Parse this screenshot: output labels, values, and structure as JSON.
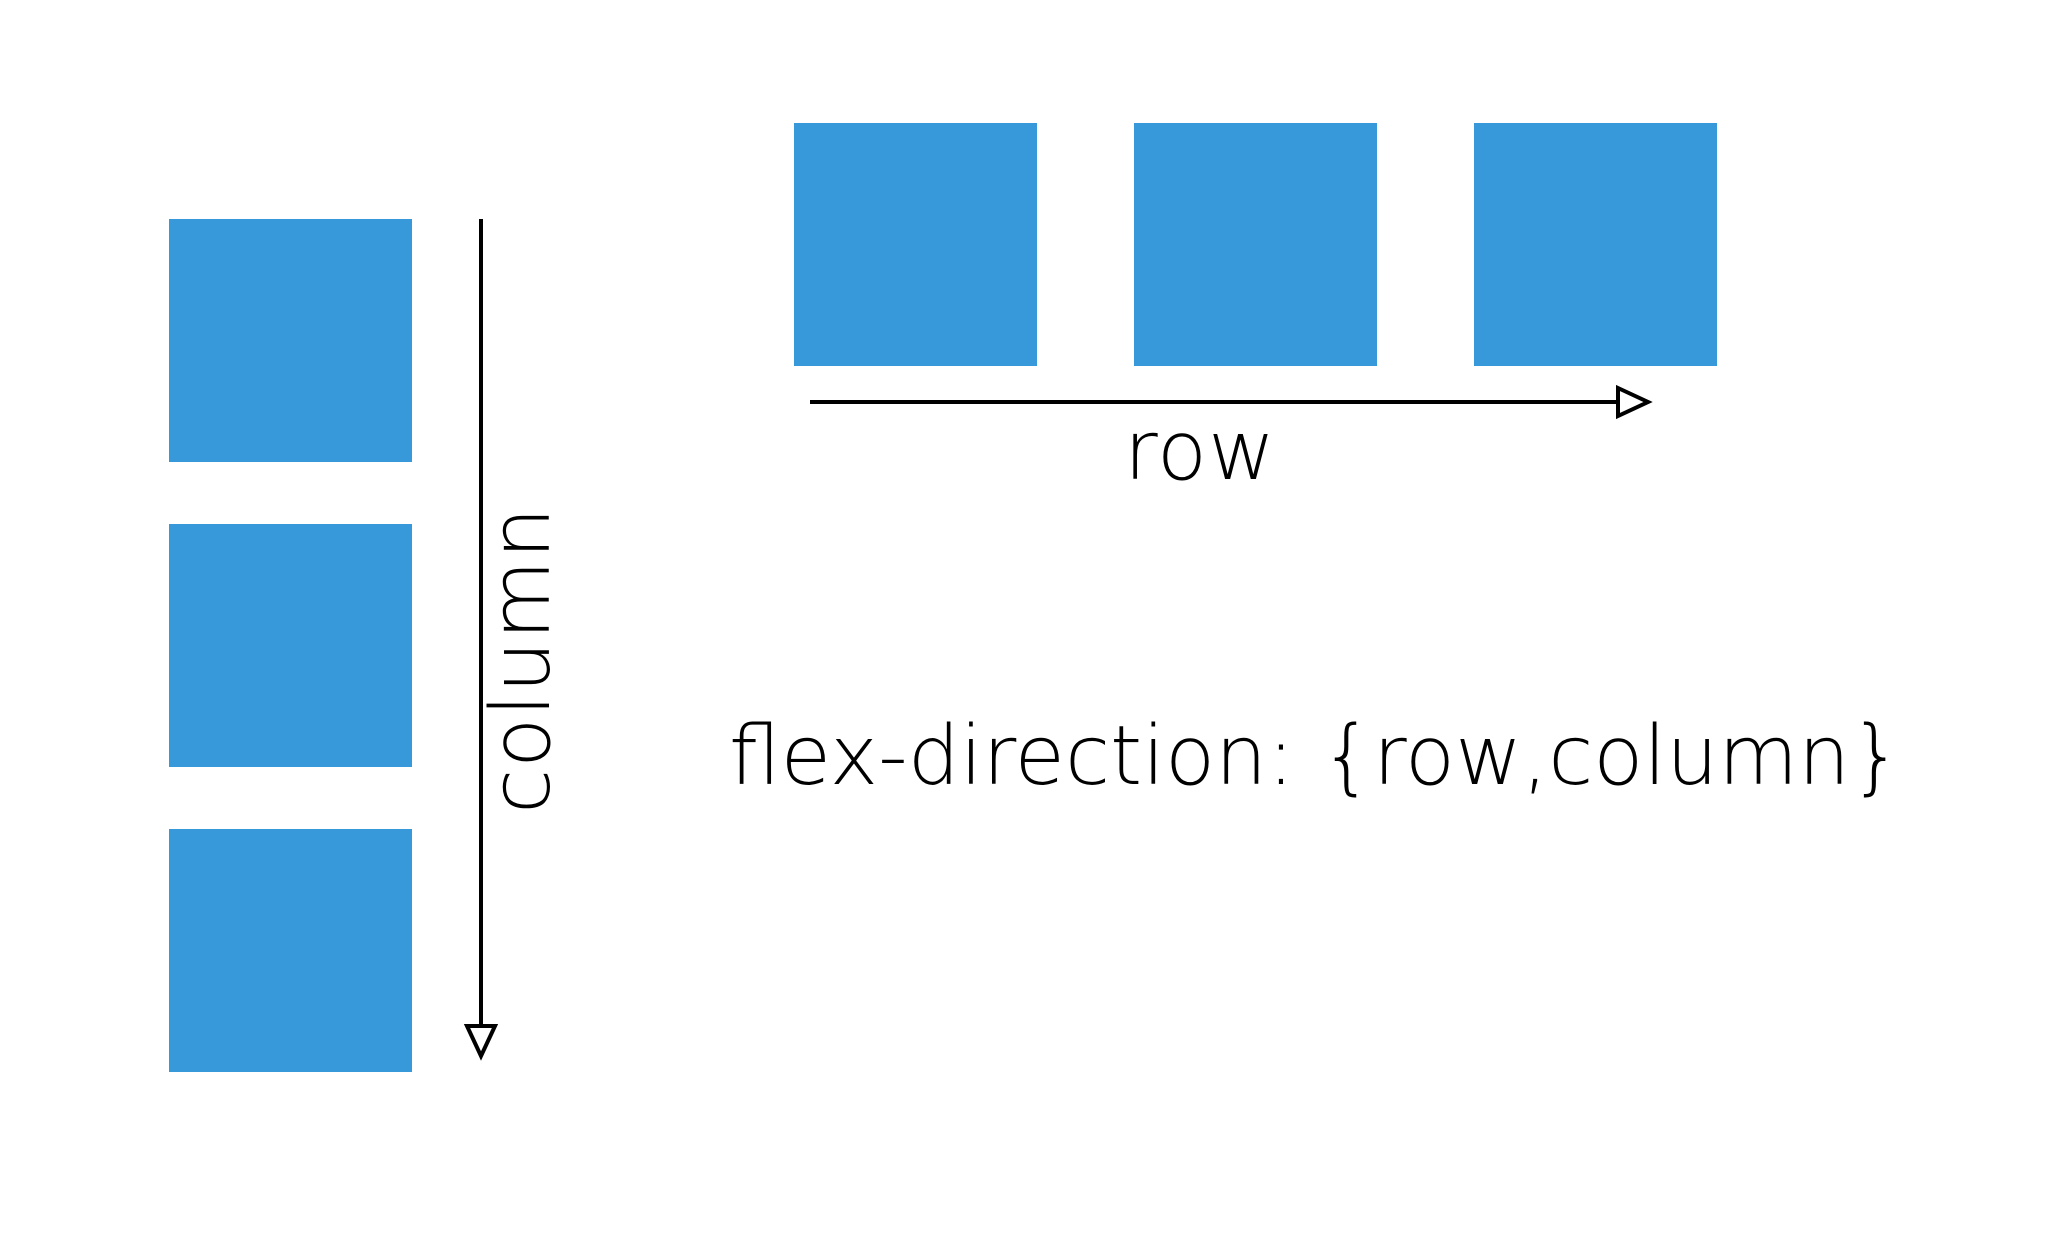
{
  "diagram": {
    "box_color": "#3798da",
    "line_color": "#000000",
    "row_label": "row",
    "column_label": "column",
    "caption": "flex-direction: {row,column}",
    "row_boxes": [
      "box",
      "box",
      "box"
    ],
    "column_boxes": [
      "box",
      "box",
      "box"
    ]
  }
}
